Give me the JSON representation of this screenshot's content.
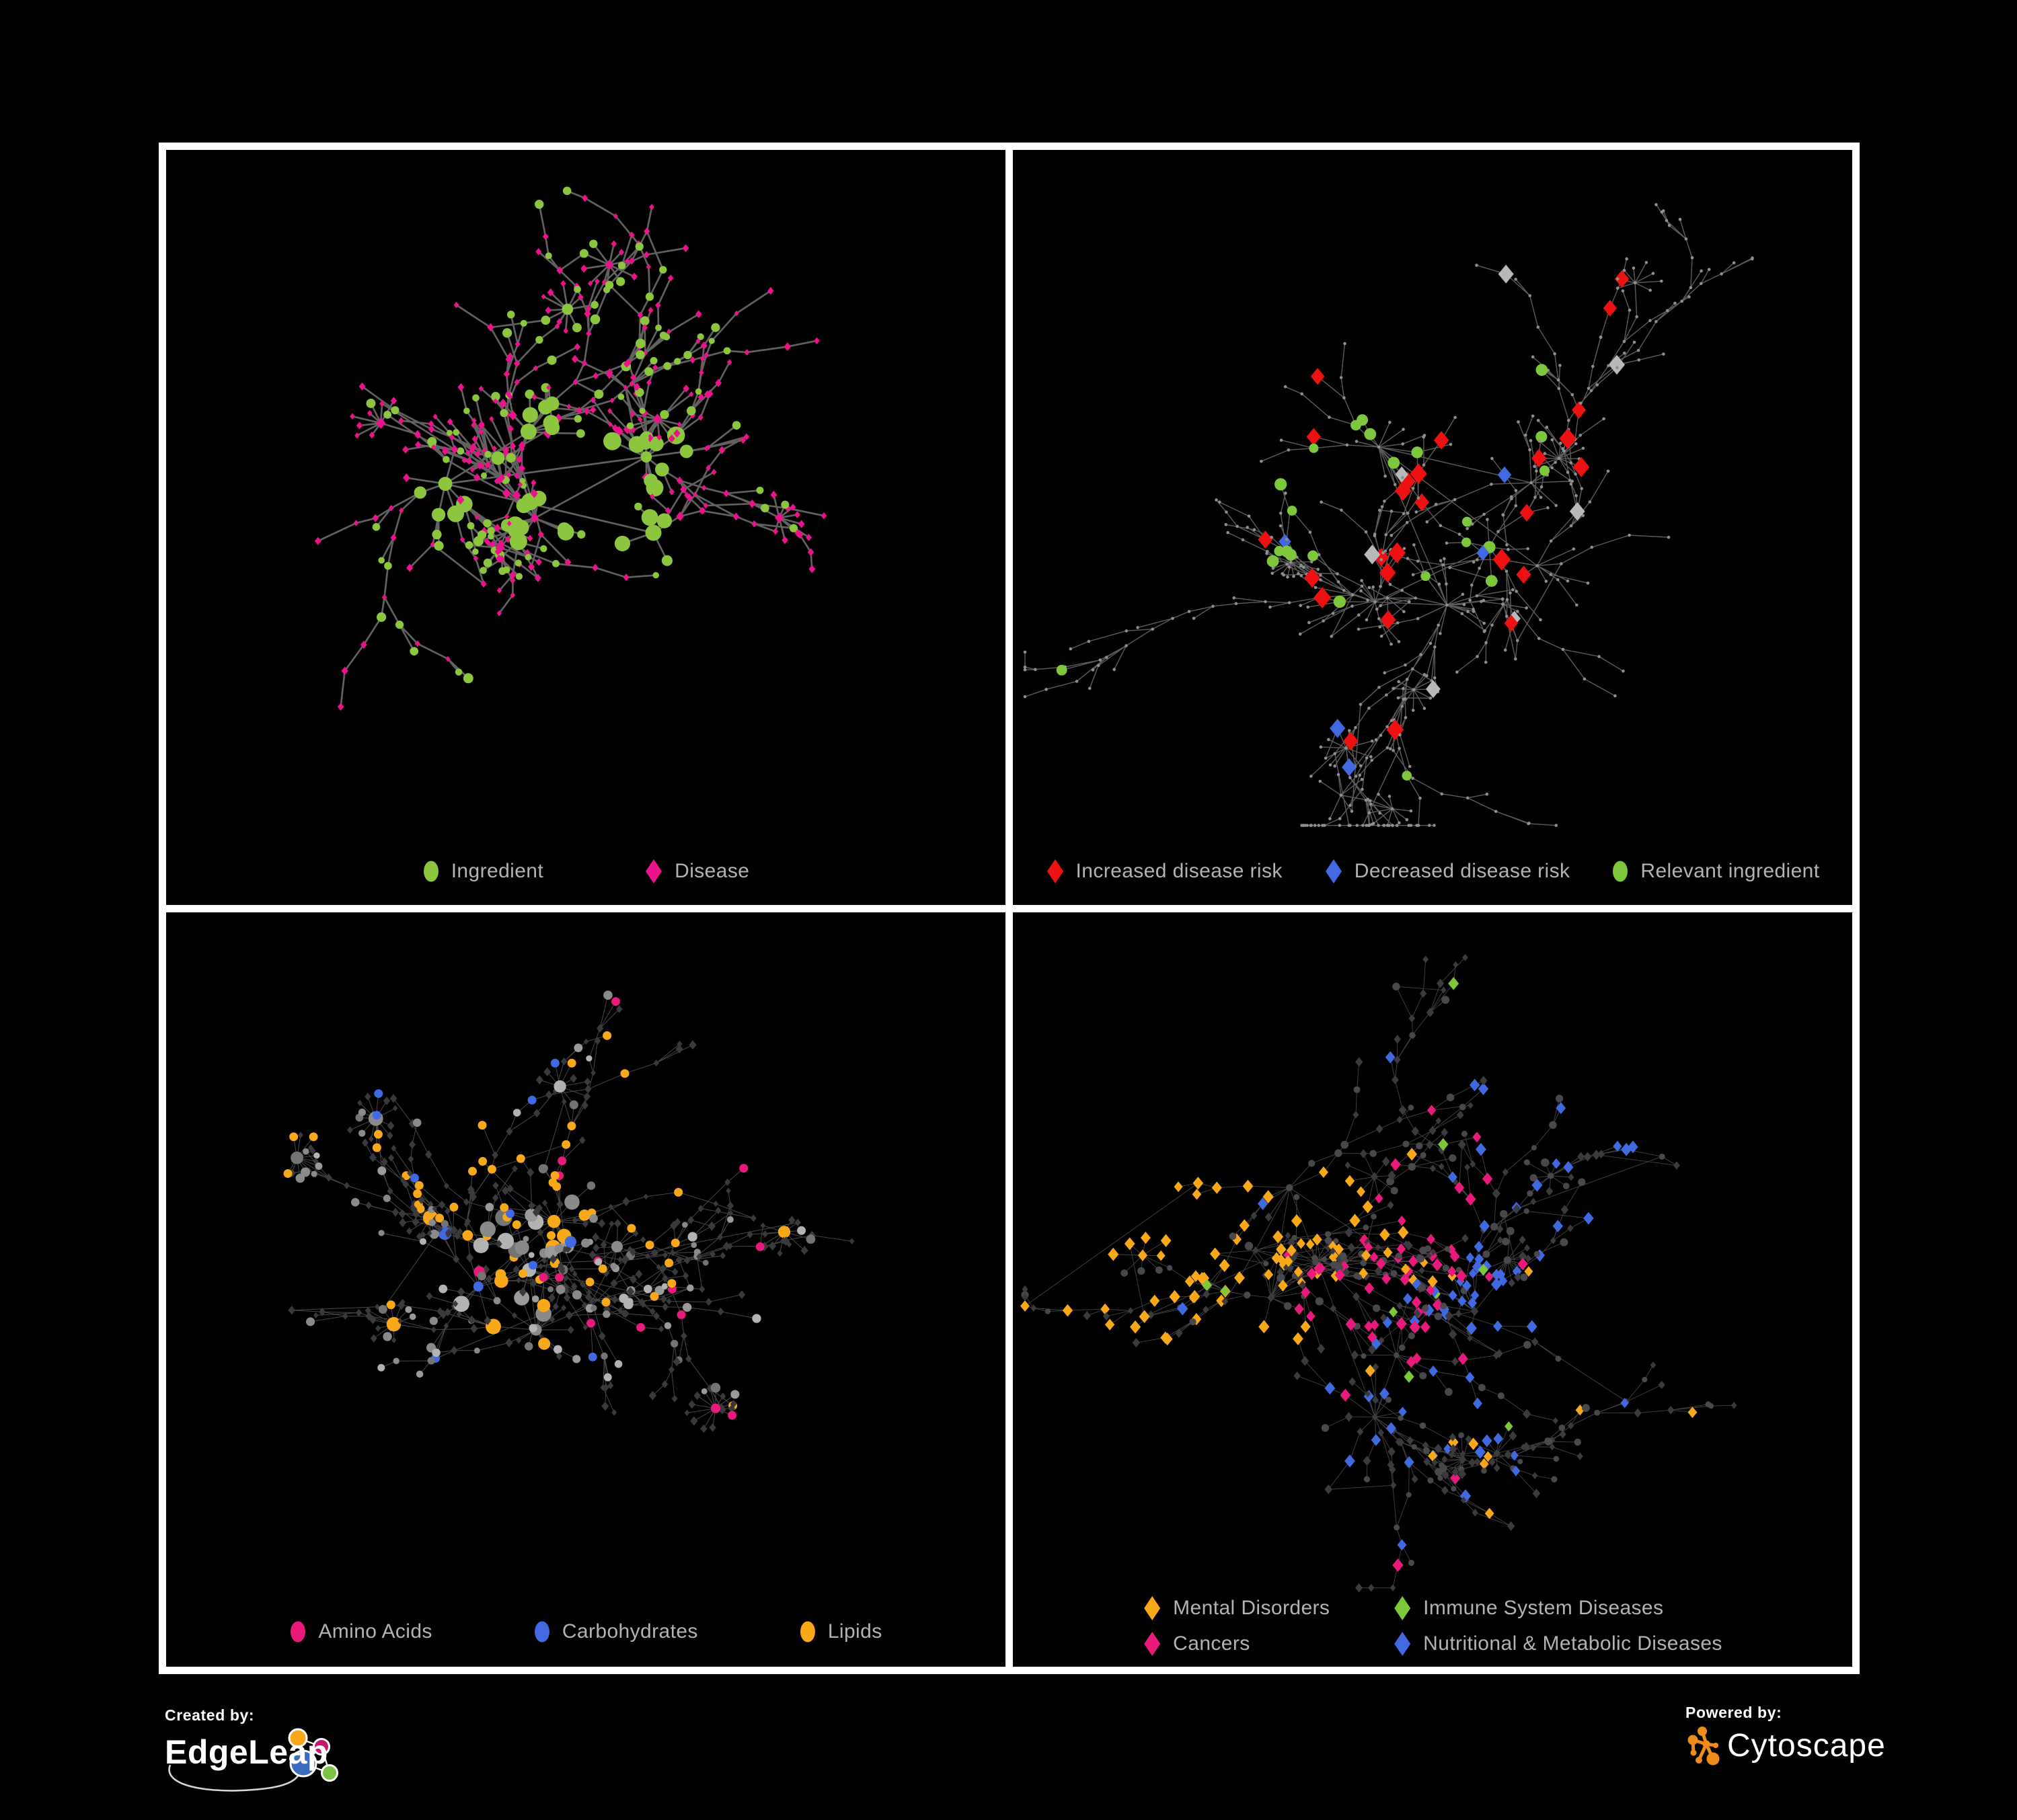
{
  "figure": {
    "background": "#000000",
    "panel_background": "#000000",
    "panel_border_color": "#FFFFFF",
    "legend_text_color": "#B3B3B3"
  },
  "panels": [
    {
      "name": "ingredient-disease",
      "description": "Ingredient-disease association network; unlabeled nodes; green circles = ingredients, pink diamonds = diseases; gray edges",
      "legend": [
        {
          "label": "Ingredient",
          "shape": "circle",
          "color": "#8CC63E"
        },
        {
          "label": "Disease",
          "shape": "diamond",
          "color": "#EB138C"
        }
      ],
      "render": {
        "seed": 101,
        "hubs": 5,
        "hubSpread": 180,
        "n": 370,
        "step": 47,
        "fans": 7,
        "fanMin": 6,
        "fanMax": 13,
        "cross": 30,
        "edge": {
          "color": "#6B6B6B",
          "width": 2.7,
          "opacity": 0.9
        },
        "kind": 1,
        "style": {
          "ingredient_color": "#8CC63E",
          "disease_color": "#EB138C",
          "ingredient_prob": 0.3,
          "hub_ingredient_prob": 0.55
        }
      }
    },
    {
      "name": "disease-risk",
      "description": "Same association network with disease-risk highlighting; red diamonds = increased risk, blue diamonds = decreased risk, gray diamonds = neutral, green circles = relevant ingredients; small gray dots = other nodes",
      "legend": [
        {
          "label": "Increased disease risk",
          "shape": "diamond",
          "color": "#EE1111"
        },
        {
          "label": "Decreased disease risk",
          "shape": "diamond",
          "color": "#4169E1"
        },
        {
          "label": "Relevant ingredient",
          "shape": "circle",
          "color": "#7DC73C"
        }
      ],
      "render": {
        "seed": 202,
        "hubs": 6,
        "hubSpread": 250,
        "n": 480,
        "step": 45,
        "fans": 8,
        "fanMin": 6,
        "fanMax": 14,
        "cross": 26,
        "edge": {
          "color": "#616161",
          "width": 1.4,
          "opacity": 0.95
        },
        "kind": 2,
        "style": {
          "base_color": "#8F8F8F",
          "base_r": 2.3,
          "highlights": [
            {
              "name": "increased-risk",
              "shape": "diamond",
              "color": "#EE1111",
              "size": 12.5,
              "count": 26,
              "focal": [
                0.42,
                0.4
              ],
              "sigma": 0.2,
              "floor": 0.05
            },
            {
              "name": "neutral",
              "shape": "diamond",
              "color": "#B9B9B9",
              "size": 11.5,
              "count": 7,
              "focal": [
                0.45,
                0.45
              ],
              "sigma": 0.18,
              "floor": 0.04
            },
            {
              "name": "relevant-ingredient",
              "shape": "circle",
              "color": "#7DC73C",
              "size": 8,
              "count": 24,
              "focal": [
                0.36,
                0.38
              ],
              "sigma": 0.15,
              "floor": 0.04
            },
            {
              "name": "decreased-risk",
              "shape": "diamond",
              "color": "#4169E1",
              "size": 11,
              "count": 5,
              "focal": [
                0.86,
                0.24
              ],
              "sigma": 0.09,
              "floor": 0.22
            }
          ]
        }
      }
    },
    {
      "name": "ingredient-classes",
      "description": "Same network with ingredient chemical classes highlighted; pink = amino acids, blue = carbohydrates, orange = lipids; gray circles = other ingredients, dark diamonds = diseases",
      "legend": [
        {
          "label": "Amino Acids",
          "shape": "circle",
          "color": "#E91A7C"
        },
        {
          "label": "Carbohydrates",
          "shape": "circle",
          "color": "#4169E1"
        },
        {
          "label": "Lipids",
          "shape": "circle",
          "color": "#F9A81A"
        }
      ],
      "render": {
        "seed": 303,
        "hubs": 5,
        "hubSpread": 190,
        "n": 410,
        "step": 46,
        "fans": 8,
        "fanMin": 7,
        "fanMax": 16,
        "cross": 30,
        "edge": {
          "color": "#9E9E9E",
          "width": 1.0,
          "opacity": 0.45
        },
        "kind": 3,
        "style": {
          "circle_prob": 0.44,
          "circle_grays": [
            "#9A9A9A",
            "#8A8A8A",
            "#B3B3B3",
            "#747474"
          ],
          "diamond_color": "#3A3A3E",
          "highlights": [
            {
              "name": "lipids",
              "color": "#F9A81A",
              "count": 60,
              "focal": [
                0.45,
                0.33
              ],
              "sigma": 0.16,
              "floor": 0.05
            },
            {
              "name": "carbohydrates",
              "color": "#4169E1",
              "count": 13,
              "focal": [
                0.41,
                0.28
              ],
              "sigma": 0.1,
              "floor": 0.08
            },
            {
              "name": "amino-acids",
              "color": "#E91A7C",
              "count": 15,
              "focal": [
                0.5,
                0.55
              ],
              "sigma": 1.5,
              "floor": 0.5
            }
          ]
        }
      }
    },
    {
      "name": "disease-classes",
      "description": "Same network with disease classes highlighted as colored diamonds; orange = mental disorders, pink = cancers, green = immune system diseases, blue = nutritional & metabolic diseases; dark diamonds/circles = other nodes",
      "legend": [
        {
          "label": "Mental Disorders",
          "shape": "diamond",
          "color": "#F9A81A"
        },
        {
          "label": "Immune System Diseases",
          "shape": "diamond",
          "color": "#7DC73C"
        },
        {
          "label": "Cancers",
          "shape": "diamond",
          "color": "#E91A7C"
        },
        {
          "label": "Nutritional & Metabolic Diseases",
          "shape": "diamond",
          "color": "#4169E1"
        }
      ],
      "render": {
        "seed": 404,
        "hubs": 6,
        "hubSpread": 240,
        "n": 480,
        "step": 45,
        "fans": 8,
        "fanMin": 6,
        "fanMax": 14,
        "cross": 28,
        "edge": {
          "color": "#A8A8A8",
          "width": 0.9,
          "opacity": 0.4
        },
        "kind": 4,
        "style": {
          "diamond_prob": 0.74,
          "diamond_color": "#3B3B3F",
          "circle_color": "#49494D",
          "highlights": [
            {
              "name": "mental-disorders",
              "color": "#F9A81A",
              "count": 85,
              "focal": [
                0.2,
                0.46
              ],
              "sigma": 0.12,
              "floor": 0.02
            },
            {
              "name": "cancers",
              "color": "#E91A7C",
              "count": 56,
              "focal": [
                0.45,
                0.54
              ],
              "sigma": 0.12,
              "floor": 0.03
            },
            {
              "name": "nutritional-metabolic",
              "color": "#4169E1",
              "count": 70,
              "focal": [
                0.62,
                0.58
              ],
              "sigma": 0.13,
              "focal2": [
                0.83,
                0.26
              ],
              "sigma2": 0.17,
              "floor": 0.05
            },
            {
              "name": "immune-system",
              "color": "#7DC73C",
              "count": 9,
              "focal": [
                0.5,
                0.5
              ],
              "sigma": 2.0,
              "floor": 0.5
            }
          ]
        }
      }
    }
  ],
  "footer": {
    "created_by_label": "Created by:",
    "created_by_name": "EdgeLeap",
    "powered_by_label": "Powered by:",
    "powered_by_name": "Cytoscape",
    "edgeleap_colors": {
      "orange": "#F5A81C",
      "magenta": "#C4166B",
      "blue": "#3C6CC0",
      "green": "#7DC242"
    },
    "cytoscape_orange": "#EF8B1D"
  }
}
